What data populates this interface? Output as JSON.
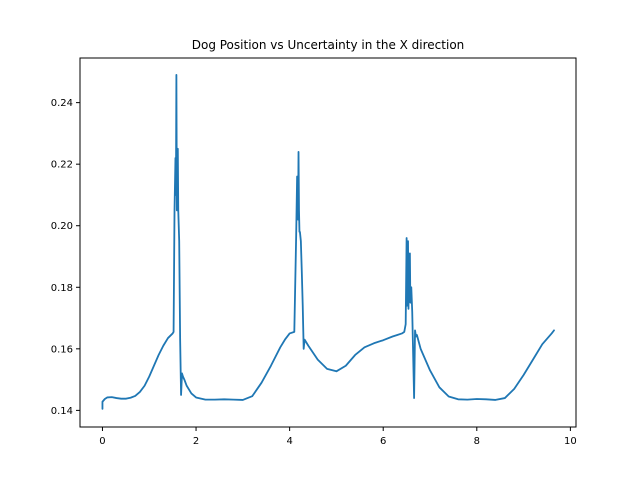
{
  "colors": {
    "line": "#1f77b4",
    "axes": "#000000",
    "background": "#ffffff"
  },
  "chart_data": {
    "type": "line",
    "title": "Dog Position vs Uncertainty in the X direction",
    "xlabel": "",
    "ylabel": "",
    "xlim": [
      -0.48,
      10.12
    ],
    "ylim": [
      0.1346,
      0.2545
    ],
    "xticks": [
      0,
      2,
      4,
      6,
      8,
      10
    ],
    "xtick_labels": [
      "0",
      "2",
      "4",
      "6",
      "8",
      "10"
    ],
    "yticks": [
      0.14,
      0.16,
      0.18,
      0.2,
      0.22,
      0.24
    ],
    "ytick_labels": [
      "0.14",
      "0.16",
      "0.18",
      "0.20",
      "0.22",
      "0.24"
    ],
    "grid": false,
    "series": [
      {
        "x": [
          0.0,
          0.0,
          0.05,
          0.1,
          0.2,
          0.3,
          0.4,
          0.5,
          0.6,
          0.7,
          0.8,
          0.9,
          1.0,
          1.1,
          1.2,
          1.3,
          1.4,
          1.5,
          1.52,
          1.54,
          1.56,
          1.57,
          1.58,
          1.59,
          1.6,
          1.61,
          1.62,
          1.64,
          1.66,
          1.68,
          1.7,
          1.72,
          1.75,
          1.8,
          1.9,
          2.0,
          2.2,
          2.4,
          2.6,
          2.8,
          3.0,
          3.2,
          3.4,
          3.6,
          3.8,
          3.9,
          4.0,
          4.1,
          4.14,
          4.16,
          4.18,
          4.19,
          4.2,
          4.21,
          4.22,
          4.24,
          4.26,
          4.28,
          4.3,
          4.32,
          4.4,
          4.6,
          4.8,
          5.0,
          5.2,
          5.4,
          5.6,
          5.8,
          6.0,
          6.2,
          6.3,
          6.4,
          6.45,
          6.48,
          6.5,
          6.51,
          6.52,
          6.53,
          6.54,
          6.55,
          6.56,
          6.57,
          6.58,
          6.6,
          6.62,
          6.64,
          6.66,
          6.68,
          6.7,
          6.72,
          6.8,
          7.0,
          7.2,
          7.4,
          7.6,
          7.8,
          8.0,
          8.2,
          8.4,
          8.6,
          8.8,
          9.0,
          9.2,
          9.4,
          9.6,
          9.65
        ],
        "y": [
          0.1405,
          0.1428,
          0.1437,
          0.1442,
          0.1443,
          0.144,
          0.1438,
          0.1438,
          0.1441,
          0.1447,
          0.146,
          0.148,
          0.151,
          0.1545,
          0.158,
          0.161,
          0.1635,
          0.165,
          0.1655,
          0.205,
          0.222,
          0.21,
          0.249,
          0.205,
          0.218,
          0.225,
          0.205,
          0.195,
          0.163,
          0.145,
          0.152,
          0.151,
          0.15,
          0.148,
          0.1455,
          0.1442,
          0.1435,
          0.1435,
          0.1436,
          0.1435,
          0.1434,
          0.1446,
          0.149,
          0.1545,
          0.1605,
          0.163,
          0.165,
          0.1655,
          0.197,
          0.216,
          0.202,
          0.224,
          0.205,
          0.198,
          0.198,
          0.195,
          0.185,
          0.174,
          0.16,
          0.163,
          0.161,
          0.1565,
          0.1535,
          0.1527,
          0.1545,
          0.158,
          0.1605,
          0.1618,
          0.1628,
          0.164,
          0.1645,
          0.165,
          0.1655,
          0.168,
          0.196,
          0.174,
          0.178,
          0.195,
          0.173,
          0.187,
          0.18,
          0.191,
          0.175,
          0.18,
          0.172,
          0.158,
          0.144,
          0.166,
          0.164,
          0.1645,
          0.16,
          0.153,
          0.1475,
          0.1445,
          0.1436,
          0.1435,
          0.1437,
          0.1436,
          0.1434,
          0.144,
          0.147,
          0.1515,
          0.1565,
          0.1615,
          0.165,
          0.166
        ]
      }
    ]
  }
}
